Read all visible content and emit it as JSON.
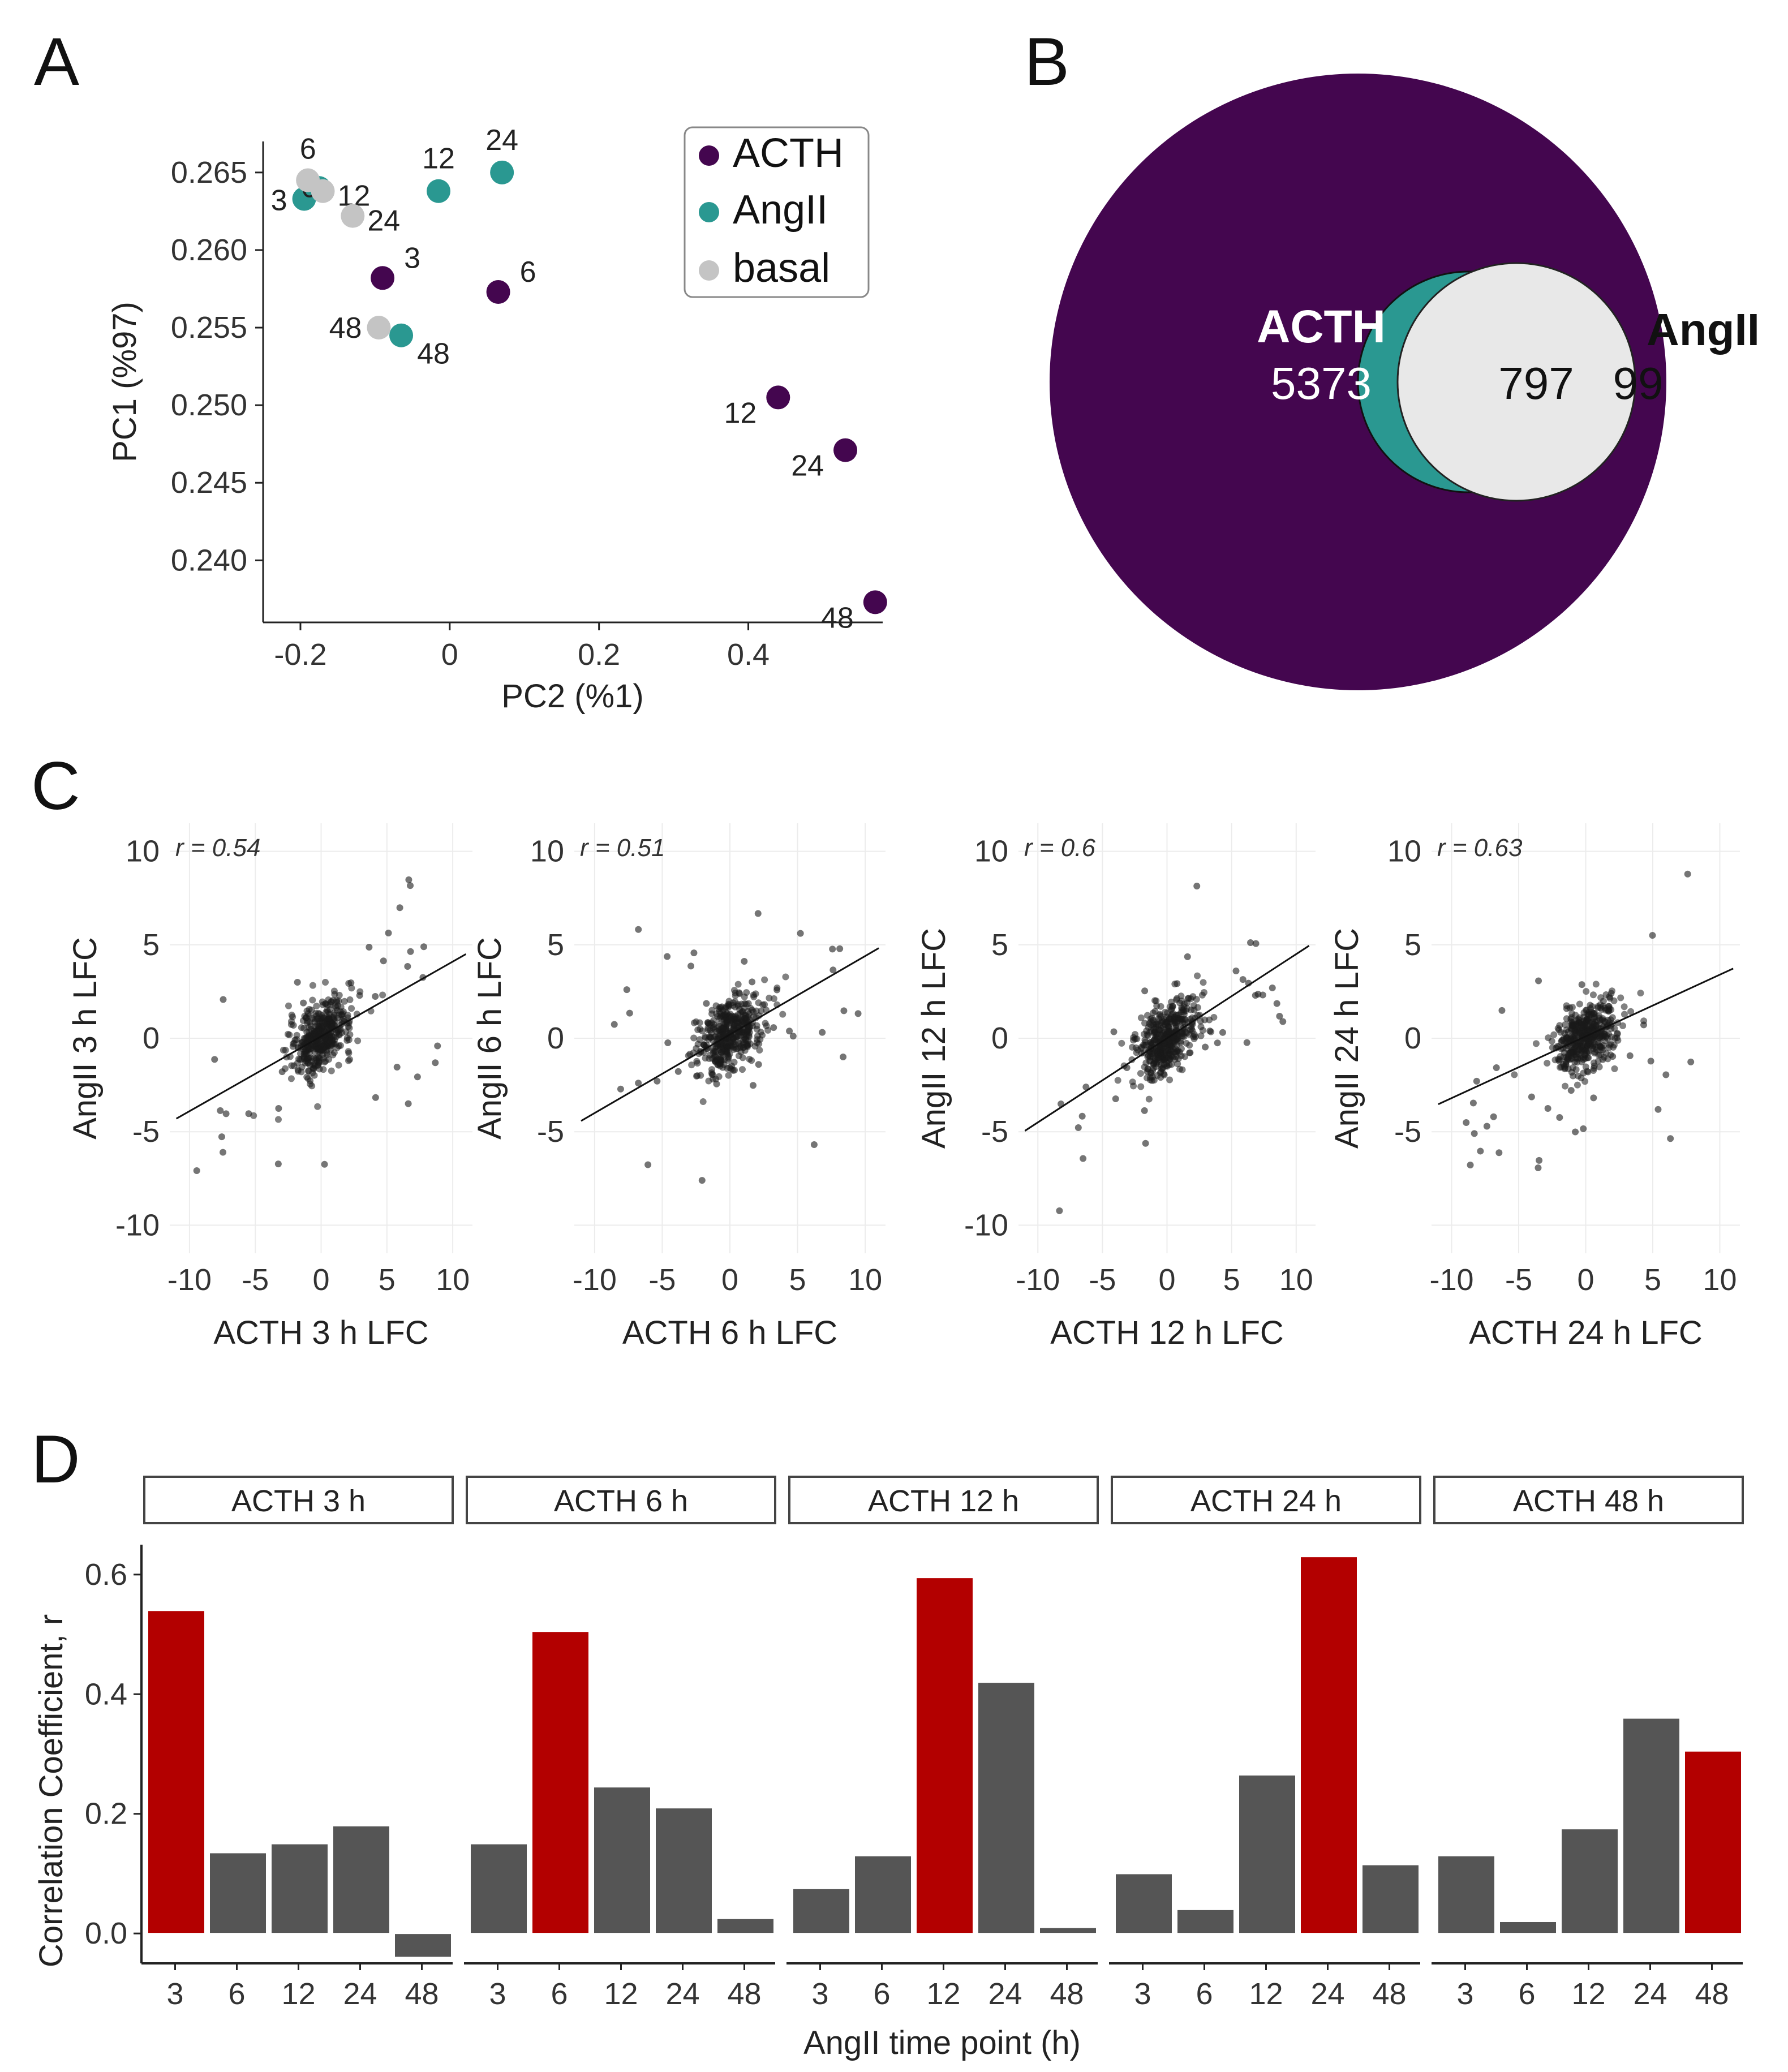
{
  "panels": {
    "A": "A",
    "B": "B",
    "C": "C",
    "D": "D"
  },
  "colors": {
    "ACTH": "#44064f",
    "AngII": "#2a9891",
    "basal": "#c4c4c4",
    "highlight": "#b30000",
    "other": "#555555",
    "overlap": "#e8e8e8"
  },
  "chart_data": [
    {
      "panel": "A",
      "type": "scatter",
      "xlabel": "PC2 (%1)",
      "ylabel": "PC1 (%97)",
      "xlim": [
        -0.25,
        0.58
      ],
      "ylim": [
        0.236,
        0.267
      ],
      "xticks": [
        "-0.2",
        "0",
        "0.2",
        "0.4"
      ],
      "yticks": [
        "0.240",
        "0.245",
        "0.250",
        "0.255",
        "0.260",
        "0.265"
      ],
      "legend": [
        "ACTH",
        "AngII",
        "basal"
      ],
      "legend_position": "top-right",
      "series": [
        {
          "name": "ACTH",
          "points": [
            {
              "x": -0.09,
              "y": 0.2582,
              "label": "3"
            },
            {
              "x": 0.065,
              "y": 0.2573,
              "label": "6"
            },
            {
              "x": 0.44,
              "y": 0.2505,
              "label": "12"
            },
            {
              "x": 0.53,
              "y": 0.2471,
              "label": "24"
            },
            {
              "x": 0.57,
              "y": 0.2373,
              "label": "48"
            }
          ]
        },
        {
          "name": "AngII",
          "points": [
            {
              "x": -0.195,
              "y": 0.2633,
              "label": "3"
            },
            {
              "x": -0.175,
              "y": 0.264,
              "label": "6"
            },
            {
              "x": -0.015,
              "y": 0.2638,
              "label": "12"
            },
            {
              "x": 0.07,
              "y": 0.265,
              "label": "24"
            },
            {
              "x": -0.065,
              "y": 0.2545,
              "label": "48"
            }
          ]
        },
        {
          "name": "basal",
          "points": [
            {
              "x": -0.19,
              "y": 0.2645,
              "label": "6"
            },
            {
              "x": -0.17,
              "y": 0.2638,
              "label": "12"
            },
            {
              "x": -0.13,
              "y": 0.2622,
              "label": "24"
            },
            {
              "x": -0.095,
              "y": 0.255,
              "label": "48"
            }
          ]
        }
      ]
    },
    {
      "panel": "B",
      "type": "venn",
      "sets": [
        {
          "name": "ACTH",
          "only": "5373"
        },
        {
          "name": "AngII",
          "only": "99"
        }
      ],
      "overlap": "797"
    },
    {
      "panel": "C",
      "type": "scatter",
      "subplots": [
        {
          "xlabel": "ACTH 3 h LFC",
          "ylabel": "AngII 3 h LFC",
          "r": "r = 0.54",
          "slope": 0.4,
          "intercept": 0.1,
          "yticks": [
            "-10",
            "-5",
            "0",
            "5",
            "10"
          ],
          "xticks": [
            "-10",
            "-5",
            "0",
            "5",
            "10"
          ]
        },
        {
          "xlabel": "ACTH 6 h LFC",
          "ylabel": "AngII 6 h LFC",
          "r": "r = 0.51",
          "slope": 0.42,
          "intercept": 0.2,
          "yticks": [
            "-5",
            "0",
            "5",
            "10"
          ],
          "xticks": [
            "-10",
            "-5",
            "0",
            "5",
            "10"
          ]
        },
        {
          "xlabel": "ACTH 12 h LFC",
          "ylabel": "AngII 12 h LFC",
          "r": "r = 0.6",
          "slope": 0.45,
          "intercept": 0.0,
          "yticks": [
            "-10",
            "-5",
            "0",
            "5",
            "10"
          ],
          "xticks": [
            "-10",
            "-5",
            "0",
            "5",
            "10"
          ]
        },
        {
          "xlabel": "ACTH 24 h LFC",
          "ylabel": "AngII 24 h LFC",
          "r": "r = 0.63",
          "slope": 0.33,
          "intercept": 0.1,
          "yticks": [
            "-5",
            "0",
            "5",
            "10"
          ],
          "xticks": [
            "-10",
            "-5",
            "0",
            "5",
            "10"
          ]
        }
      ]
    },
    {
      "panel": "D",
      "type": "bar",
      "ylabel": "Correlation Coefficient, r",
      "xlabel": "AngII time point (h)",
      "ylim": [
        -0.05,
        0.65
      ],
      "yticks": [
        "0.0",
        "0.2",
        "0.4",
        "0.6"
      ],
      "categories": [
        "3",
        "6",
        "12",
        "24",
        "48"
      ],
      "facets": [
        {
          "name": "ACTH 3 h",
          "values": [
            0.54,
            0.135,
            0.15,
            0.18,
            -0.04
          ],
          "highlight": 0
        },
        {
          "name": "ACTH 6 h",
          "values": [
            0.15,
            0.505,
            0.245,
            0.21,
            0.025
          ],
          "highlight": 1
        },
        {
          "name": "ACTH 12 h",
          "values": [
            0.075,
            0.13,
            0.595,
            0.42,
            0.01
          ],
          "highlight": 2
        },
        {
          "name": "ACTH 24 h",
          "values": [
            0.1,
            0.04,
            0.265,
            0.63,
            0.115
          ],
          "highlight": 3
        },
        {
          "name": "ACTH 48 h",
          "values": [
            0.13,
            0.02,
            0.175,
            0.36,
            0.305
          ],
          "highlight": 4
        }
      ]
    }
  ]
}
